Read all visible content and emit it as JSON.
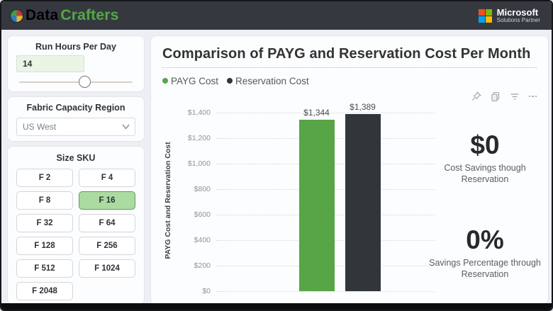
{
  "topbar": {
    "brand": {
      "part1": "Data",
      "part2": "Crafters"
    },
    "partner": {
      "line1": "Microsoft",
      "line2": "Solutions Partner"
    }
  },
  "sidebar": {
    "run_hours": {
      "title": "Run Hours Per Day",
      "value": "14",
      "slider_percent": 58
    },
    "region": {
      "title": "Fabric Capacity Region",
      "selected": "US West"
    },
    "size_sku": {
      "title": "Size SKU",
      "options": [
        {
          "label": "F 2",
          "selected": false
        },
        {
          "label": "F 4",
          "selected": false
        },
        {
          "label": "F 8",
          "selected": false
        },
        {
          "label": "F 16",
          "selected": true
        },
        {
          "label": "F 32",
          "selected": false
        },
        {
          "label": "F 64",
          "selected": false
        },
        {
          "label": "F 128",
          "selected": false
        },
        {
          "label": "F 256",
          "selected": false
        },
        {
          "label": "F 512",
          "selected": false
        },
        {
          "label": "F 1024",
          "selected": false
        },
        {
          "label": "F 2048",
          "selected": false
        }
      ]
    }
  },
  "main": {
    "toolbar_icons": [
      "pin",
      "copy",
      "filter",
      "more-options"
    ],
    "kpis": [
      {
        "value": "$0",
        "label": "Cost Savings though Reservation"
      },
      {
        "value": "0%",
        "label": "Savings Percentage through Reservation"
      }
    ]
  },
  "chart_data": {
    "type": "bar",
    "title": "Comparison of PAYG and Reservation Cost Per Month",
    "categories": [
      "PAYG Cost",
      "Reservation Cost"
    ],
    "values": [
      1344,
      1389
    ],
    "data_labels": [
      "$1,344",
      "$1,389"
    ],
    "colors": [
      "#57a546",
      "#31363b"
    ],
    "xlabel": "",
    "ylabel": "PAYG Cost and Reservation Cost",
    "ylim": [
      0,
      1400
    ],
    "yticks": [
      {
        "value": 1400,
        "label": "$1,400"
      },
      {
        "value": 1200,
        "label": "$1,200"
      },
      {
        "value": 1000,
        "label": "$1,000"
      },
      {
        "value": 800,
        "label": "$800"
      },
      {
        "value": 600,
        "label": "$600"
      },
      {
        "value": 400,
        "label": "$400"
      },
      {
        "value": 200,
        "label": "$200"
      },
      {
        "value": 0,
        "label": "$0"
      }
    ],
    "grid": "horizontal-dotted",
    "legend_position": "top-left",
    "legend": [
      {
        "label": "PAYG Cost",
        "color": "#57a546"
      },
      {
        "label": "Reservation Cost",
        "color": "#31363b"
      }
    ]
  }
}
